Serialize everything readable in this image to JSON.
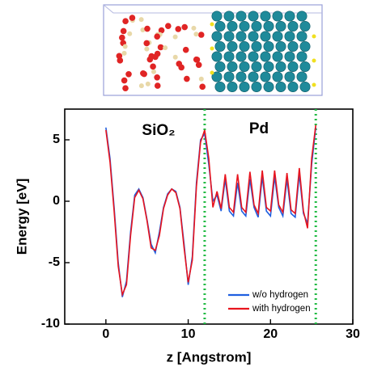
{
  "chart_data": {
    "type": "line",
    "x_label": "z [Angstrom]",
    "y_label": "Energy [eV]",
    "annotations": [
      "SiO₂",
      "Pd"
    ],
    "xlim": [
      -5,
      30
    ],
    "xticks": [
      0,
      10,
      20,
      30
    ],
    "ylim": [
      -10,
      7.5
    ],
    "yticks": [
      -10,
      -5,
      0,
      5
    ],
    "legend": "lower right",
    "vlines": [
      12,
      25.5
    ],
    "vline_color": "#22bb44",
    "x": [
      0,
      0.5,
      1,
      1.5,
      2,
      2.5,
      3,
      3.5,
      4,
      4.5,
      5,
      5.5,
      6,
      6.5,
      7,
      7.5,
      8,
      8.5,
      9,
      9.5,
      10,
      10.5,
      11,
      11.5,
      12,
      12.5,
      13,
      13.5,
      14,
      14.5,
      15,
      15.5,
      16,
      16.5,
      17,
      17.5,
      18,
      18.5,
      19,
      19.5,
      20,
      20.5,
      21,
      21.5,
      22,
      22.5,
      23,
      23.5,
      24,
      24.5,
      25,
      25.5
    ],
    "series": [
      {
        "name": "w/o hydrogen",
        "color": "#1f5fe0",
        "values": [
          6,
          3.5,
          -0.5,
          -5,
          -7.8,
          -6.5,
          -2.5,
          0.5,
          1,
          0.3,
          -1.5,
          -3.5,
          -4.2,
          -2.5,
          -0.5,
          0.6,
          1,
          0.8,
          -0.5,
          -3.5,
          -6.8,
          -4.5,
          1.5,
          5,
          5.5,
          3,
          0,
          0.5,
          -0.8,
          1.8,
          -0.8,
          -1.2,
          1.5,
          -0.8,
          -1.2,
          1.8,
          -0.5,
          -1.3,
          2,
          -0.8,
          -1.2,
          2,
          -0.5,
          -1.2,
          1.8,
          -1,
          -1.3,
          2.2,
          -1,
          -1.8,
          3,
          6
        ]
      },
      {
        "name": "with hydrogen",
        "color": "#e8141e",
        "values": [
          5.8,
          3.2,
          -0.8,
          -5.3,
          -7.6,
          -6.8,
          -2.8,
          0.3,
          0.9,
          0.2,
          -1.6,
          -3.8,
          -4,
          -2.8,
          -0.6,
          0.5,
          1,
          0.7,
          -0.6,
          -3.8,
          -6.6,
          -4.8,
          1.2,
          4.8,
          5.8,
          3.5,
          -0.5,
          0.8,
          -0.6,
          2.2,
          -0.5,
          -0.9,
          2.2,
          -0.5,
          -0.9,
          2.4,
          -0.3,
          -1,
          2.5,
          -0.5,
          -0.8,
          2.5,
          -0.3,
          -0.9,
          2.3,
          -0.7,
          -1,
          2.7,
          -0.8,
          -2.2,
          3.5,
          6.2
        ]
      }
    ]
  }
}
